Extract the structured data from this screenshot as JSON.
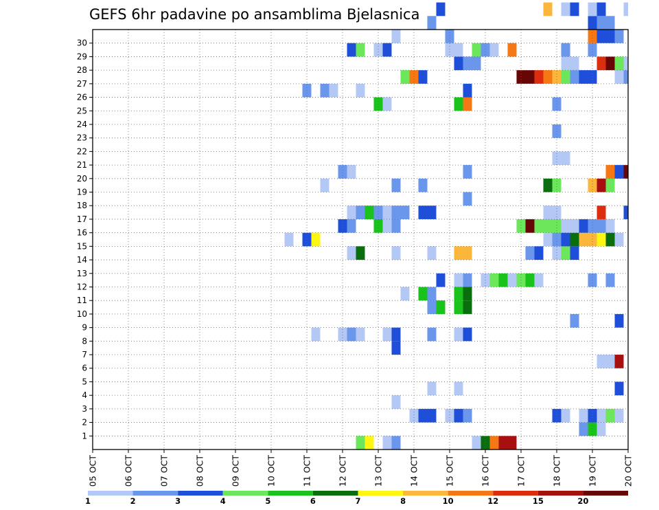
{
  "chart_data": {
    "type": "heatmap",
    "title": "GEFS 6hr padavine po ansamblima Bjelasnica",
    "xlabel": "",
    "ylabel": "",
    "x_tick_labels": [
      "05 OCT",
      "06 OCT",
      "07 OCT",
      "08 OCT",
      "09 OCT",
      "10 OCT",
      "11 OCT",
      "12 OCT",
      "13 OCT",
      "14 OCT",
      "15 OCT",
      "16 OCT",
      "17 OCT",
      "18 OCT",
      "19 OCT",
      "20 OCT"
    ],
    "xlim_days": [
      0,
      15
    ],
    "time_step_hours": 6,
    "y_tick_labels": [
      "1",
      "2",
      "3",
      "4",
      "5",
      "6",
      "7",
      "8",
      "9",
      "10",
      "11",
      "12",
      "13",
      "14",
      "15",
      "16",
      "17",
      "18",
      "19",
      "20",
      "21",
      "22",
      "23",
      "24",
      "25",
      "26",
      "27",
      "28",
      "29",
      "30"
    ],
    "ylim": [
      0,
      30
    ],
    "grid": true,
    "colorbar": {
      "levels": [
        "1",
        "2",
        "3",
        "4",
        "5",
        "6",
        "7",
        "8",
        "10",
        "12",
        "15",
        "20"
      ],
      "colors": [
        "#b4c8f5",
        "#6a96ec",
        "#1f4fd8",
        "#6ce65a",
        "#19c31b",
        "#0a6e0e",
        "#fff712",
        "#fbb63c",
        "#f67814",
        "#dc2d0f",
        "#a81010",
        "#680606"
      ]
    },
    "cells": [
      {
        "m": 0,
        "i": 0,
        "day": 7.5,
        "c": 4
      },
      {
        "m": 0,
        "i": 0,
        "day": 7.75,
        "c": 7
      },
      {
        "m": 0,
        "i": 0,
        "day": 8.25,
        "c": 1
      },
      {
        "m": 0,
        "i": 0,
        "day": 8.5,
        "c": 2
      },
      {
        "m": 0,
        "i": 0,
        "day": 10.75,
        "c": 1
      },
      {
        "m": 0,
        "i": 0,
        "day": 11.0,
        "c": 6
      },
      {
        "m": 0,
        "i": 0,
        "day": 11.25,
        "c": 9
      },
      {
        "m": 0,
        "i": 0,
        "day": 11.5,
        "c": 11
      },
      {
        "m": 0,
        "i": 0,
        "day": 11.75,
        "c": 11
      },
      {
        "m": 1,
        "i": 0,
        "day": 13.75,
        "c": 2
      },
      {
        "m": 1,
        "i": 0,
        "day": 14.0,
        "c": 5
      },
      {
        "m": 1,
        "i": 0,
        "day": 14.25,
        "c": 1
      },
      {
        "m": 2,
        "i": 0,
        "day": 9.0,
        "c": 1
      },
      {
        "m": 2,
        "i": 0,
        "day": 9.25,
        "c": 3
      },
      {
        "m": 2,
        "i": 0,
        "day": 9.5,
        "c": 3
      },
      {
        "m": 2,
        "i": 0,
        "day": 10.0,
        "c": 1
      },
      {
        "m": 2,
        "i": 0,
        "day": 10.25,
        "c": 3
      },
      {
        "m": 2,
        "i": 0,
        "day": 10.5,
        "c": 2
      },
      {
        "m": 2,
        "i": 0,
        "day": 13.0,
        "c": 3
      },
      {
        "m": 2,
        "i": 0,
        "day": 13.25,
        "c": 1
      },
      {
        "m": 2,
        "i": 0,
        "day": 13.75,
        "c": 1
      },
      {
        "m": 2,
        "i": 0,
        "day": 14.0,
        "c": 3
      },
      {
        "m": 2,
        "i": 0,
        "day": 14.25,
        "c": 1
      },
      {
        "m": 2,
        "i": 0,
        "day": 14.5,
        "c": 4
      },
      {
        "m": 2,
        "i": 0,
        "day": 14.75,
        "c": 1
      },
      {
        "m": 3,
        "i": 0,
        "day": 8.5,
        "c": 1
      },
      {
        "m": 4,
        "i": 0,
        "day": 9.5,
        "c": 1
      },
      {
        "m": 4,
        "i": 0,
        "day": 10.25,
        "c": 1
      },
      {
        "m": 4,
        "i": 0,
        "day": 14.75,
        "c": 3
      },
      {
        "m": 6,
        "i": 0,
        "day": 14.25,
        "c": 1
      },
      {
        "m": 6,
        "i": 0,
        "day": 14.5,
        "c": 1
      },
      {
        "m": 6,
        "i": 0,
        "day": 14.75,
        "c": 11
      },
      {
        "m": 7,
        "i": 0,
        "day": 8.5,
        "c": 3
      },
      {
        "m": 8,
        "i": 0,
        "day": 6.25,
        "c": 1
      },
      {
        "m": 8,
        "i": 0,
        "day": 7.0,
        "c": 1
      },
      {
        "m": 8,
        "i": 0,
        "day": 7.25,
        "c": 2
      },
      {
        "m": 8,
        "i": 0,
        "day": 7.5,
        "c": 1
      },
      {
        "m": 8,
        "i": 0,
        "day": 8.25,
        "c": 1
      },
      {
        "m": 8,
        "i": 0,
        "day": 8.5,
        "c": 3
      },
      {
        "m": 8,
        "i": 0,
        "day": 9.5,
        "c": 2
      },
      {
        "m": 8,
        "i": 0,
        "day": 10.25,
        "c": 1
      },
      {
        "m": 8,
        "i": 0,
        "day": 10.5,
        "c": 3
      },
      {
        "m": 9,
        "i": 0,
        "day": 13.5,
        "c": 2
      },
      {
        "m": 9,
        "i": 0,
        "day": 14.75,
        "c": 3
      },
      {
        "m": 10,
        "i": 0,
        "day": 9.5,
        "c": 2
      },
      {
        "m": 10,
        "i": 0,
        "day": 9.75,
        "c": 5
      },
      {
        "m": 10,
        "i": 0,
        "day": 10.25,
        "c": 5
      },
      {
        "m": 10,
        "i": 0,
        "day": 10.5,
        "c": 6
      },
      {
        "m": 11,
        "i": 0,
        "day": 8.75,
        "c": 1
      },
      {
        "m": 11,
        "i": 0,
        "day": 9.25,
        "c": 5
      },
      {
        "m": 11,
        "i": 0,
        "day": 9.5,
        "c": 2
      },
      {
        "m": 11,
        "i": 0,
        "day": 10.25,
        "c": 5
      },
      {
        "m": 11,
        "i": 0,
        "day": 10.5,
        "c": 6
      },
      {
        "m": 12,
        "i": 0,
        "day": 9.75,
        "c": 3
      },
      {
        "m": 12,
        "i": 0,
        "day": 10.25,
        "c": 1
      },
      {
        "m": 12,
        "i": 0,
        "day": 10.5,
        "c": 2
      },
      {
        "m": 12,
        "i": 0,
        "day": 11.0,
        "c": 1
      },
      {
        "m": 12,
        "i": 0,
        "day": 11.25,
        "c": 4
      },
      {
        "m": 12,
        "i": 0,
        "day": 11.5,
        "c": 5
      },
      {
        "m": 12,
        "i": 0,
        "day": 11.75,
        "c": 1
      },
      {
        "m": 12,
        "i": 0,
        "day": 12.0,
        "c": 4
      },
      {
        "m": 12,
        "i": 0,
        "day": 12.25,
        "c": 5
      },
      {
        "m": 12,
        "i": 0,
        "day": 12.5,
        "c": 1
      },
      {
        "m": 12,
        "i": 0,
        "day": 14.0,
        "c": 2
      },
      {
        "m": 12,
        "i": 0,
        "day": 14.5,
        "c": 2
      },
      {
        "m": 14,
        "i": 0,
        "day": 7.25,
        "c": 1
      },
      {
        "m": 14,
        "i": 0,
        "day": 7.5,
        "c": 6
      },
      {
        "m": 14,
        "i": 0,
        "day": 8.5,
        "c": 1
      },
      {
        "m": 14,
        "i": 0,
        "day": 9.5,
        "c": 1
      },
      {
        "m": 14,
        "i": 0,
        "day": 10.25,
        "c": 8
      },
      {
        "m": 14,
        "i": 0,
        "day": 10.5,
        "c": 8
      },
      {
        "m": 14,
        "i": 0,
        "day": 12.25,
        "c": 2
      },
      {
        "m": 14,
        "i": 0,
        "day": 12.5,
        "c": 3
      },
      {
        "m": 14,
        "i": 0,
        "day": 13.0,
        "c": 1
      },
      {
        "m": 14,
        "i": 0,
        "day": 13.25,
        "c": 4
      },
      {
        "m": 14,
        "i": 0,
        "day": 13.5,
        "c": 3
      },
      {
        "m": 15,
        "i": 0,
        "day": 5.5,
        "c": 1
      },
      {
        "m": 15,
        "i": 0,
        "day": 6.0,
        "c": 3
      },
      {
        "m": 15,
        "i": 0,
        "day": 6.25,
        "c": 7
      },
      {
        "m": 15,
        "i": 0,
        "day": 12.75,
        "c": 1
      },
      {
        "m": 15,
        "i": 0,
        "day": 13.0,
        "c": 2
      },
      {
        "m": 15,
        "i": 0,
        "day": 13.25,
        "c": 3
      },
      {
        "m": 15,
        "i": 0,
        "day": 13.5,
        "c": 6
      },
      {
        "m": 15,
        "i": 0,
        "day": 13.75,
        "c": 8
      },
      {
        "m": 15,
        "i": 0,
        "day": 14.0,
        "c": 8
      },
      {
        "m": 15,
        "i": 0,
        "day": 14.25,
        "c": 7
      },
      {
        "m": 15,
        "i": 0,
        "day": 14.5,
        "c": 6
      },
      {
        "m": 15,
        "i": 0,
        "day": 14.75,
        "c": 1
      },
      {
        "m": 16,
        "i": 0,
        "day": 7.0,
        "c": 3
      },
      {
        "m": 16,
        "i": 0,
        "day": 7.25,
        "c": 2
      },
      {
        "m": 16,
        "i": 0,
        "day": 8.0,
        "c": 5
      },
      {
        "m": 16,
        "i": 0,
        "day": 8.25,
        "c": 1
      },
      {
        "m": 16,
        "i": 0,
        "day": 8.5,
        "c": 2
      },
      {
        "m": 16,
        "i": 0,
        "day": 12.0,
        "c": 4
      },
      {
        "m": 16,
        "i": 0,
        "day": 12.25,
        "c": 12
      },
      {
        "m": 16,
        "i": 0,
        "day": 12.5,
        "c": 4
      },
      {
        "m": 16,
        "i": 0,
        "day": 12.75,
        "c": 4
      },
      {
        "m": 16,
        "i": 0,
        "day": 13.0,
        "c": 4
      },
      {
        "m": 16,
        "i": 0,
        "day": 13.25,
        "c": 1
      },
      {
        "m": 16,
        "i": 0,
        "day": 13.5,
        "c": 1
      },
      {
        "m": 16,
        "i": 0,
        "day": 13.75,
        "c": 3
      },
      {
        "m": 16,
        "i": 0,
        "day": 14.0,
        "c": 2
      },
      {
        "m": 16,
        "i": 0,
        "day": 14.25,
        "c": 2
      },
      {
        "m": 16,
        "i": 0,
        "day": 14.5,
        "c": 1
      },
      {
        "m": 17,
        "i": 0,
        "day": 7.25,
        "c": 1
      },
      {
        "m": 17,
        "i": 0,
        "day": 7.5,
        "c": 2
      },
      {
        "m": 17,
        "i": 0,
        "day": 7.75,
        "c": 5
      },
      {
        "m": 17,
        "i": 0,
        "day": 8.0,
        "c": 2
      },
      {
        "m": 17,
        "i": 0,
        "day": 8.25,
        "c": 1
      },
      {
        "m": 17,
        "i": 0,
        "day": 8.5,
        "c": 2
      },
      {
        "m": 17,
        "i": 0,
        "day": 8.75,
        "c": 2
      },
      {
        "m": 17,
        "i": 0,
        "day": 9.25,
        "c": 3
      },
      {
        "m": 17,
        "i": 0,
        "day": 9.5,
        "c": 3
      },
      {
        "m": 17,
        "i": 0,
        "day": 12.75,
        "c": 1
      },
      {
        "m": 17,
        "i": 0,
        "day": 13.0,
        "c": 1
      },
      {
        "m": 17,
        "i": 0,
        "day": 14.25,
        "c": 10
      },
      {
        "m": 17,
        "i": 0,
        "day": 15.0,
        "c": 3
      },
      {
        "m": 18,
        "i": 0,
        "day": 10.5,
        "c": 2
      },
      {
        "m": 19,
        "i": 0,
        "day": 6.5,
        "c": 1
      },
      {
        "m": 19,
        "i": 0,
        "day": 8.5,
        "c": 2
      },
      {
        "m": 19,
        "i": 0,
        "day": 9.25,
        "c": 2
      },
      {
        "m": 19,
        "i": 0,
        "day": 12.75,
        "c": 6
      },
      {
        "m": 19,
        "i": 0,
        "day": 13.0,
        "c": 4
      },
      {
        "m": 19,
        "i": 0,
        "day": 14.0,
        "c": 8
      },
      {
        "m": 19,
        "i": 0,
        "day": 14.25,
        "c": 11
      },
      {
        "m": 19,
        "i": 0,
        "day": 14.5,
        "c": 4
      },
      {
        "m": 20,
        "i": 0,
        "day": 7.0,
        "c": 2
      },
      {
        "m": 20,
        "i": 0,
        "day": 7.25,
        "c": 1
      },
      {
        "m": 20,
        "i": 0,
        "day": 10.5,
        "c": 2
      },
      {
        "m": 20,
        "i": 0,
        "day": 14.5,
        "c": 9
      },
      {
        "m": 20,
        "i": 0,
        "day": 14.75,
        "c": 3
      },
      {
        "m": 20,
        "i": 0,
        "day": 15.0,
        "c": 12
      },
      {
        "m": 21,
        "i": 0,
        "day": 13.0,
        "c": 1
      },
      {
        "m": 21,
        "i": 0,
        "day": 13.25,
        "c": 1
      },
      {
        "m": 23,
        "i": 0,
        "day": 13.0,
        "c": 2
      },
      {
        "m": 25,
        "i": 0,
        "day": 8.0,
        "c": 5
      },
      {
        "m": 25,
        "i": 0,
        "day": 8.25,
        "c": 1
      },
      {
        "m": 25,
        "i": 0,
        "day": 10.25,
        "c": 5
      },
      {
        "m": 25,
        "i": 0,
        "day": 10.5,
        "c": 9
      },
      {
        "m": 25,
        "i": 0,
        "day": 13.0,
        "c": 2
      },
      {
        "m": 26,
        "i": 0,
        "day": 6.0,
        "c": 2
      },
      {
        "m": 26,
        "i": 0,
        "day": 6.5,
        "c": 2
      },
      {
        "m": 26,
        "i": 0,
        "day": 6.75,
        "c": 1
      },
      {
        "m": 26,
        "i": 0,
        "day": 7.5,
        "c": 1
      },
      {
        "m": 26,
        "i": 0,
        "day": 10.5,
        "c": 3
      },
      {
        "m": 27,
        "i": 0,
        "day": 8.75,
        "c": 4
      },
      {
        "m": 27,
        "i": 0,
        "day": 9.0,
        "c": 9
      },
      {
        "m": 27,
        "i": 0,
        "day": 9.25,
        "c": 3
      },
      {
        "m": 27,
        "i": 0,
        "day": 12.0,
        "c": 12
      },
      {
        "m": 27,
        "i": 0,
        "day": 12.25,
        "c": 12
      },
      {
        "m": 27,
        "i": 0,
        "day": 12.5,
        "c": 10
      },
      {
        "m": 27,
        "i": 0,
        "day": 12.75,
        "c": 9
      },
      {
        "m": 27,
        "i": 0,
        "day": 13.0,
        "c": 8
      },
      {
        "m": 27,
        "i": 0,
        "day": 13.25,
        "c": 4
      },
      {
        "m": 27,
        "i": 0,
        "day": 13.5,
        "c": 2
      },
      {
        "m": 27,
        "i": 0,
        "day": 13.75,
        "c": 3
      },
      {
        "m": 27,
        "i": 0,
        "day": 14.0,
        "c": 3
      },
      {
        "m": 27,
        "i": 0,
        "day": 14.75,
        "c": 1
      },
      {
        "m": 27,
        "i": 0,
        "day": 15.0,
        "c": 2
      },
      {
        "m": 28,
        "i": 0,
        "day": 10.25,
        "c": 3
      },
      {
        "m": 28,
        "i": 0,
        "day": 10.5,
        "c": 2
      },
      {
        "m": 28,
        "i": 0,
        "day": 10.75,
        "c": 2
      },
      {
        "m": 28,
        "i": 0,
        "day": 13.25,
        "c": 1
      },
      {
        "m": 28,
        "i": 0,
        "day": 13.5,
        "c": 1
      },
      {
        "m": 28,
        "i": 0,
        "day": 14.25,
        "c": 10
      },
      {
        "m": 28,
        "i": 0,
        "day": 14.5,
        "c": 12
      },
      {
        "m": 28,
        "i": 0,
        "day": 14.75,
        "c": 4
      },
      {
        "m": 28,
        "i": 0,
        "day": 15.0,
        "c": 1
      },
      {
        "m": 29,
        "i": 0,
        "day": 7.25,
        "c": 3
      },
      {
        "m": 29,
        "i": 0,
        "day": 7.5,
        "c": 4
      },
      {
        "m": 29,
        "i": 0,
        "day": 8.0,
        "c": 1
      },
      {
        "m": 29,
        "i": 0,
        "day": 8.25,
        "c": 3
      },
      {
        "m": 29,
        "i": 0,
        "day": 10.0,
        "c": 1
      },
      {
        "m": 29,
        "i": 0,
        "day": 10.25,
        "c": 1
      },
      {
        "m": 29,
        "i": 0,
        "day": 10.75,
        "c": 4
      },
      {
        "m": 29,
        "i": 0,
        "day": 11.0,
        "c": 2
      },
      {
        "m": 29,
        "i": 0,
        "day": 11.25,
        "c": 1
      },
      {
        "m": 29,
        "i": 0,
        "day": 11.75,
        "c": 9
      },
      {
        "m": 29,
        "i": 0,
        "day": 13.25,
        "c": 2
      },
      {
        "m": 29,
        "i": 0,
        "day": 14.0,
        "c": 2
      },
      {
        "m": 30,
        "i": 0,
        "day": 8.5,
        "c": 1
      },
      {
        "m": 30,
        "i": 0,
        "day": 10.0,
        "c": 2
      },
      {
        "m": 30,
        "i": 0,
        "day": 14.0,
        "c": 9
      },
      {
        "m": 30,
        "i": 0,
        "day": 14.25,
        "c": 3
      },
      {
        "m": 30,
        "i": 0,
        "day": 14.5,
        "c": 3
      },
      {
        "m": 30,
        "i": 0,
        "day": 14.75,
        "c": 2
      },
      {
        "m": 31,
        "i": 0,
        "day": 9.5,
        "c": 2
      },
      {
        "m": 31,
        "i": 0,
        "day": 14.0,
        "c": 3
      },
      {
        "m": 31,
        "i": 0,
        "day": 14.25,
        "c": 2
      },
      {
        "m": 31,
        "i": 0,
        "day": 14.5,
        "c": 2
      },
      {
        "m": 32,
        "i": 0,
        "day": 9.75,
        "c": 3
      },
      {
        "m": 32,
        "i": 0,
        "day": 12.75,
        "c": 8
      },
      {
        "m": 32,
        "i": 0,
        "day": 13.25,
        "c": 1
      },
      {
        "m": 32,
        "i": 0,
        "day": 13.5,
        "c": 3
      },
      {
        "m": 32,
        "i": 0,
        "day": 14.0,
        "c": 1
      },
      {
        "m": 32,
        "i": 0,
        "day": 14.25,
        "c": 3
      },
      {
        "m": 32,
        "i": 0,
        "day": 15.0,
        "c": 1
      }
    ]
  }
}
